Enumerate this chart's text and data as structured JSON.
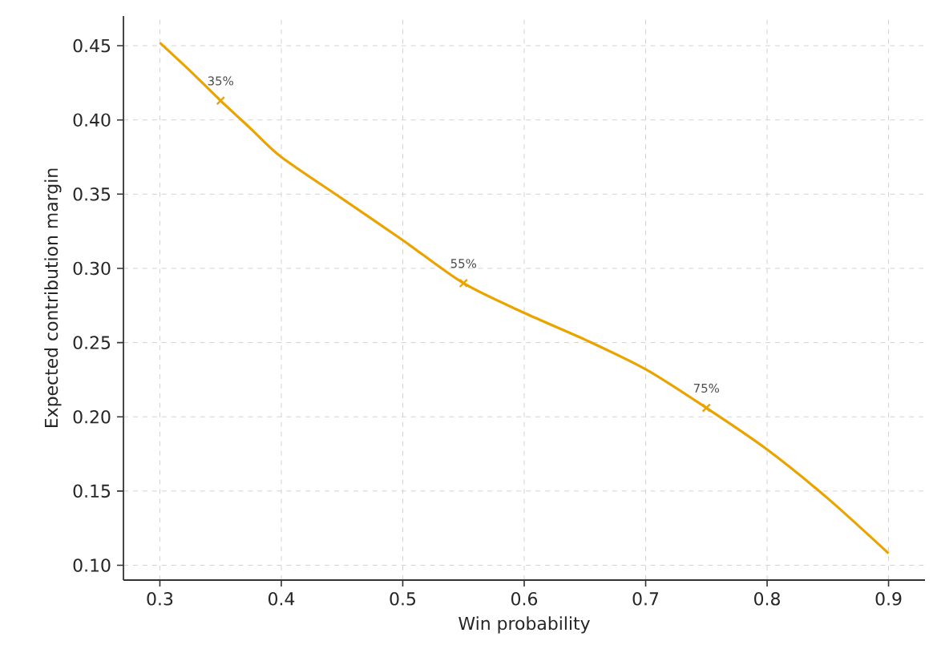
{
  "chart_data": {
    "type": "line",
    "xlabel": "Win probability",
    "ylabel": "Expected contribution margin",
    "series": [
      {
        "color": "#eba300",
        "x": [
          0.3,
          0.325,
          0.35,
          0.375,
          0.4,
          0.45,
          0.5,
          0.55,
          0.6,
          0.65,
          0.7,
          0.75,
          0.8,
          0.85,
          0.9
        ],
        "values": [
          0.452,
          0.433,
          0.413,
          0.394,
          0.375,
          0.347,
          0.319,
          0.29,
          0.27,
          0.252,
          0.232,
          0.206,
          0.178,
          0.145,
          0.108
        ]
      },
      {
        "type": "scatter",
        "color": "#eba300",
        "marker": "cross",
        "x": [
          0.35,
          0.55,
          0.75
        ],
        "values": [
          0.413,
          0.29,
          0.206
        ]
      }
    ],
    "annotations": [
      {
        "text": "35%",
        "x": 0.35,
        "y": 0.413
      },
      {
        "text": "55%",
        "x": 0.55,
        "y": 0.29
      },
      {
        "text": "75%",
        "x": 0.75,
        "y": 0.206
      }
    ],
    "xlim": [
      0.27,
      0.93
    ],
    "ylim": [
      0.09,
      0.47
    ],
    "xticks": [
      0.3,
      0.4,
      0.5,
      0.6,
      0.7,
      0.8,
      0.9
    ],
    "yticks": [
      {
        "value": 0.1,
        "label": "0.10"
      },
      0.15,
      {
        "value": 0.2,
        "label": "0.20"
      },
      0.25,
      {
        "value": 0.3,
        "label": "0.30"
      },
      0.35,
      {
        "value": 0.4,
        "label": "0.40"
      },
      0.45
    ],
    "grid": true
  }
}
